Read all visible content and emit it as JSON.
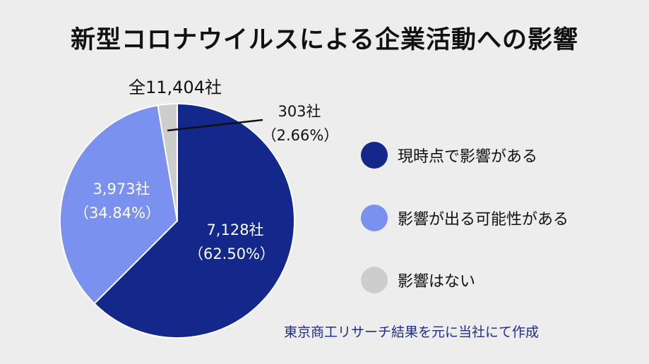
{
  "title": "新型コロナウイルスによる企業活動への影響",
  "chart_data": {
    "type": "pie",
    "total_label": "全11,404社",
    "slices": [
      {
        "name": "現時点で影響がある",
        "count_label": "7,128社",
        "pct_label": "（62.50%）",
        "value": 62.5,
        "color": "#13288a"
      },
      {
        "name": "影響が出る可能性がある",
        "count_label": "3,973社",
        "pct_label": "（34.84%）",
        "value": 34.84,
        "color": "#7b91ef"
      },
      {
        "name": "影響はない",
        "count_label": "303社",
        "pct_label": "（2.66%）",
        "value": 2.66,
        "color": "#cdcdcd"
      }
    ]
  },
  "source": "東京商工リサーチ結果を元に当社にて作成"
}
